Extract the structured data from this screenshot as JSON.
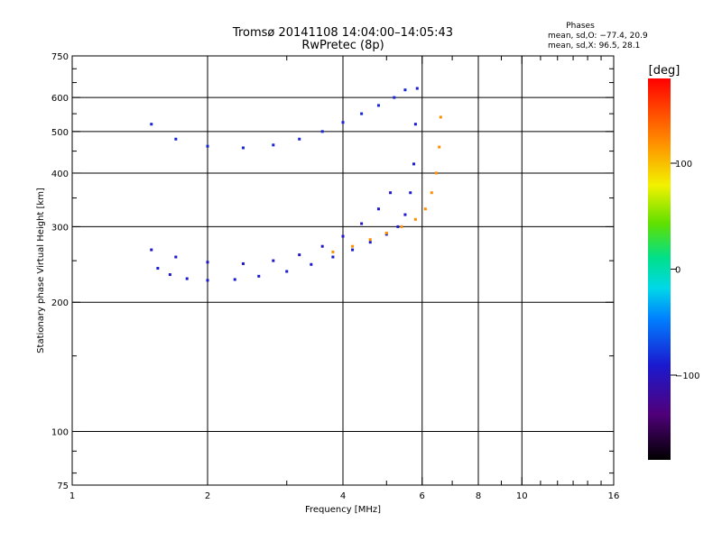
{
  "chart_data": {
    "type": "scatter",
    "title": "Tromsø 20141108 14:04:00–14:05:43",
    "subtitle": "RwPretec (8p)",
    "stats": {
      "heading": "Phases",
      "line1": "mean, sd,O: −77.4, 20.9",
      "line2": "mean, sd,X:  96.5, 28.1"
    },
    "xlabel": "Frequency [MHz]",
    "ylabel": "Stationary phase Virtual Height [km]",
    "xscale": "log",
    "yscale": "log",
    "xlim": [
      1,
      16
    ],
    "ylim": [
      75,
      750
    ],
    "x_ticks": [
      1,
      2,
      4,
      6,
      8,
      10,
      16
    ],
    "x_tick_labels": [
      "1",
      "2",
      "4",
      "6",
      "8",
      "10",
      "16"
    ],
    "x_minor_ticks": [
      3,
      5,
      7,
      9,
      11,
      12,
      13,
      14,
      15
    ],
    "x_gridlines": [
      2,
      4,
      6,
      8,
      10
    ],
    "y_ticks": [
      75,
      100,
      200,
      300,
      400,
      500,
      600,
      750
    ],
    "y_tick_labels": [
      "75",
      "100",
      "200",
      "300",
      "400",
      "500",
      "600",
      "750"
    ],
    "y_minor_ticks": [
      80,
      90,
      150,
      250,
      350,
      450,
      550,
      650,
      700
    ],
    "y_gridlines": [
      100,
      200,
      300,
      400,
      500,
      600
    ],
    "colorbar": {
      "label": "[deg]",
      "range": [
        -180,
        180
      ],
      "ticks": [
        100,
        0,
        -100
      ],
      "tick_labels": [
        "100",
        "0",
        "−100"
      ]
    },
    "series": [
      {
        "trace": "O-mode lower F-layer trace",
        "color_phase": -90,
        "points": [
          [
            1.55,
            240
          ],
          [
            1.65,
            232
          ],
          [
            1.8,
            227
          ],
          [
            2.0,
            225
          ],
          [
            2.3,
            226
          ],
          [
            2.6,
            230
          ],
          [
            3.0,
            236
          ],
          [
            3.4,
            245
          ],
          [
            3.8,
            255
          ],
          [
            4.2,
            265
          ],
          [
            4.6,
            276
          ],
          [
            5.0,
            288
          ],
          [
            5.3,
            300
          ],
          [
            5.5,
            320
          ],
          [
            5.65,
            360
          ],
          [
            5.75,
            420
          ],
          [
            5.8,
            520
          ],
          [
            5.85,
            630
          ]
        ]
      },
      {
        "trace": "O-mode upper F-layer trace",
        "color_phase": -95,
        "points": [
          [
            1.5,
            265
          ],
          [
            1.7,
            255
          ],
          [
            2.0,
            248
          ],
          [
            2.4,
            246
          ],
          [
            2.8,
            250
          ],
          [
            3.2,
            258
          ],
          [
            3.6,
            270
          ],
          [
            4.0,
            285
          ],
          [
            4.4,
            305
          ],
          [
            4.8,
            330
          ],
          [
            5.1,
            360
          ]
        ]
      },
      {
        "trace": "X-mode trace",
        "color_phase": 120,
        "points": [
          [
            3.8,
            262
          ],
          [
            4.2,
            270
          ],
          [
            4.6,
            280
          ],
          [
            5.0,
            290
          ],
          [
            5.4,
            300
          ],
          [
            5.8,
            312
          ],
          [
            6.1,
            330
          ],
          [
            6.3,
            360
          ],
          [
            6.45,
            400
          ],
          [
            6.55,
            460
          ],
          [
            6.6,
            540
          ]
        ]
      },
      {
        "trace": "Second-hop trace",
        "color_phase": -85,
        "points": [
          [
            1.5,
            520
          ],
          [
            1.7,
            480
          ],
          [
            2.0,
            462
          ],
          [
            2.4,
            458
          ],
          [
            2.8,
            465
          ],
          [
            3.2,
            480
          ],
          [
            3.6,
            500
          ],
          [
            4.0,
            525
          ],
          [
            4.4,
            550
          ],
          [
            4.8,
            575
          ],
          [
            5.2,
            600
          ],
          [
            5.5,
            625
          ]
        ]
      }
    ]
  }
}
